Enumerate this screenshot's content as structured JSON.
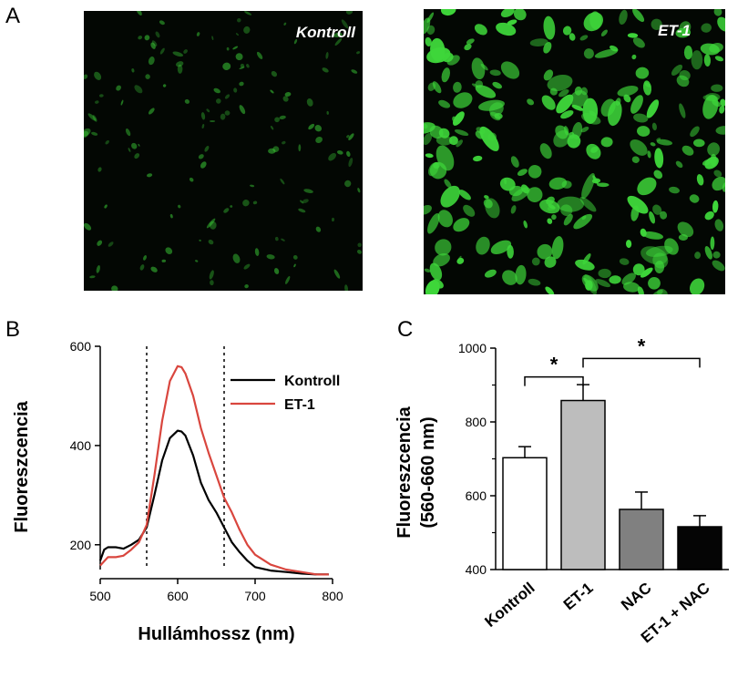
{
  "panels": {
    "a": {
      "letter": "A"
    },
    "b": {
      "letter": "B"
    },
    "c": {
      "letter": "C"
    }
  },
  "micrographs": [
    {
      "label": "Kontroll",
      "density": 1.0,
      "brightness": 0.55
    },
    {
      "label": "ET-1",
      "density": 1.0,
      "brightness": 1.0
    }
  ],
  "colors": {
    "kontroll_line": "#000000",
    "et1_line": "#d9463e",
    "cell_green": "#3ed63a",
    "bar_kontroll": "#ffffff",
    "bar_et1": "#bdbdbd",
    "bar_nac": "#808080",
    "bar_et1nac": "#050505"
  },
  "chart_data": [
    {
      "type": "line",
      "panel": "B",
      "xlabel": "Hullámhossz (nm)",
      "ylabel": "Fluoreszcencia",
      "xlim": [
        500,
        800
      ],
      "ylim": [
        150,
        600
      ],
      "xticks": [
        500,
        600,
        700,
        800
      ],
      "yticks": [
        200,
        400,
        600
      ],
      "reference_lines_x": [
        560,
        660
      ],
      "legend_position": "top-right",
      "series": [
        {
          "name": "Kontroll",
          "x": [
            500,
            505,
            510,
            520,
            530,
            540,
            550,
            560,
            570,
            580,
            590,
            600,
            605,
            610,
            620,
            630,
            640,
            650,
            660,
            670,
            680,
            690,
            700,
            720,
            740,
            760,
            780,
            795
          ],
          "y": [
            168,
            190,
            195,
            195,
            192,
            200,
            210,
            235,
            300,
            370,
            415,
            430,
            428,
            420,
            380,
            325,
            290,
            265,
            235,
            205,
            185,
            168,
            155,
            148,
            145,
            142,
            140,
            140
          ]
        },
        {
          "name": "ET-1",
          "x": [
            500,
            510,
            520,
            530,
            540,
            550,
            560,
            570,
            580,
            590,
            600,
            605,
            610,
            620,
            630,
            640,
            650,
            660,
            670,
            680,
            690,
            700,
            720,
            740,
            760,
            780,
            795
          ],
          "y": [
            158,
            175,
            175,
            178,
            190,
            205,
            240,
            340,
            450,
            530,
            560,
            558,
            545,
            500,
            435,
            385,
            340,
            295,
            265,
            230,
            200,
            180,
            160,
            150,
            145,
            140,
            140
          ]
        }
      ]
    },
    {
      "type": "bar",
      "panel": "C",
      "ylabel_line1": "Fluoreszcencia",
      "ylabel_line2": "(560-660 nm)",
      "ylim": [
        400,
        1000
      ],
      "yticks": [
        400,
        600,
        800,
        1000
      ],
      "categories": [
        "Kontroll",
        "ET-1",
        "NAC",
        "ET-1 + NAC"
      ],
      "values": [
        703,
        858,
        563,
        516
      ],
      "errors": [
        30,
        43,
        47,
        30
      ],
      "significance": [
        {
          "from": "Kontroll",
          "to": "ET-1",
          "label": "*"
        },
        {
          "from": "ET-1",
          "to": "ET-1 + NAC",
          "label": "*"
        }
      ]
    }
  ]
}
